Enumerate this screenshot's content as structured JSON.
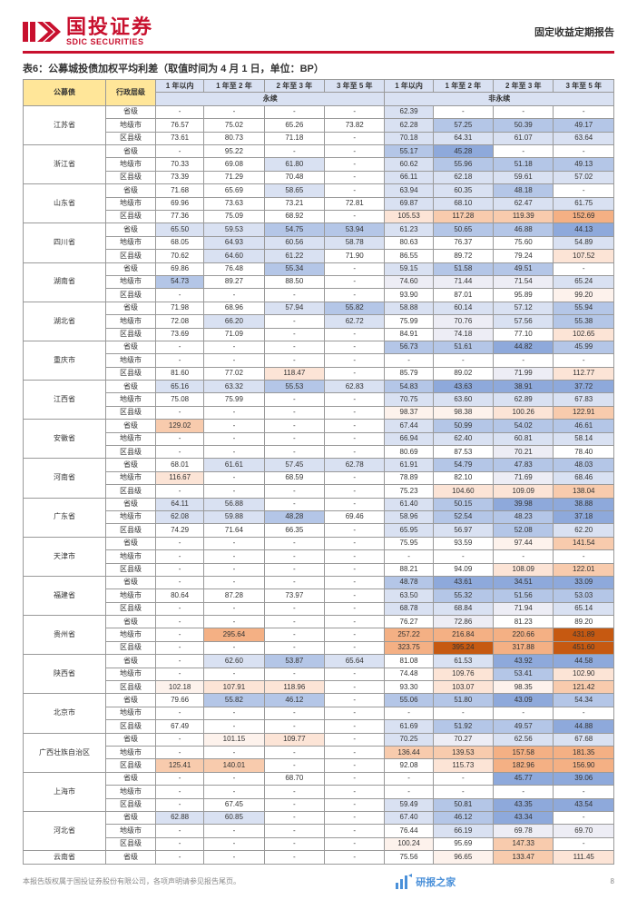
{
  "header": {
    "logo_cn": "国投证券",
    "logo_en": "SDIC SECURITIES",
    "right": "固定收益定期报告"
  },
  "table_title": "表6：公募城投债加权平均利差（取值时间为 4 月 1 日，单位：BP）",
  "columns": {
    "col0": "公募债",
    "col1": "行政层级",
    "group1": "永续",
    "group2": "非永续",
    "c1": "1 年以内",
    "c2": "1 年至 2 年",
    "c3": "2 年至 3 年",
    "c4": "3 年至 5 年"
  },
  "footer": {
    "left": "本报告版权属于国投证券股份有限公司，各项声明请参见报告尾页。",
    "page": "8",
    "watermark": "研报之家"
  },
  "colors": {
    "b5": "#305496",
    "b4": "#8ea9db",
    "b3": "#b4c6e7",
    "b2": "#d9e1f2",
    "b1": "#ededf5",
    "r5": "#c65911",
    "r4": "#f4b084",
    "r3": "#f8cbad",
    "r2": "#fce4d6",
    "r1": "#fdf2ec",
    "w": "#ffffff"
  },
  "rows": [
    {
      "prov": "江苏省",
      "lvl": "省级",
      "v": [
        "-",
        "-",
        "-",
        "-",
        "62.39",
        "-",
        "-",
        "-"
      ],
      "bg": [
        "w",
        "w",
        "w",
        "w",
        "b2",
        "w",
        "w",
        "w"
      ]
    },
    {
      "lvl": "地级市",
      "v": [
        "76.57",
        "75.02",
        "65.26",
        "73.82",
        "62.28",
        "57.25",
        "50.39",
        "49.17"
      ],
      "bg": [
        "w",
        "w",
        "w",
        "w",
        "b2",
        "b3",
        "b3",
        "b3"
      ]
    },
    {
      "lvl": "区县级",
      "v": [
        "73.61",
        "80.73",
        "71.18",
        "-",
        "70.18",
        "64.31",
        "61.07",
        "63.64"
      ],
      "bg": [
        "w",
        "w",
        "w",
        "w",
        "b2",
        "b2",
        "b2",
        "b2"
      ]
    },
    {
      "prov": "浙江省",
      "lvl": "省级",
      "v": [
        "-",
        "95.22",
        "-",
        "-",
        "55.17",
        "45.28",
        "-",
        "-"
      ],
      "bg": [
        "w",
        "w",
        "w",
        "w",
        "b3",
        "b4",
        "w",
        "w"
      ]
    },
    {
      "lvl": "地级市",
      "v": [
        "70.33",
        "69.08",
        "61.80",
        "-",
        "60.62",
        "55.96",
        "51.18",
        "49.13"
      ],
      "bg": [
        "w",
        "w",
        "b2",
        "w",
        "b2",
        "b3",
        "b3",
        "b3"
      ]
    },
    {
      "lvl": "区县级",
      "v": [
        "73.39",
        "71.29",
        "70.48",
        "-",
        "66.11",
        "62.18",
        "59.61",
        "57.02"
      ],
      "bg": [
        "w",
        "w",
        "w",
        "w",
        "b2",
        "b2",
        "b2",
        "b2"
      ]
    },
    {
      "prov": "山东省",
      "lvl": "省级",
      "v": [
        "71.68",
        "65.69",
        "58.65",
        "-",
        "63.94",
        "60.35",
        "48.18",
        "-"
      ],
      "bg": [
        "w",
        "w",
        "b2",
        "w",
        "b2",
        "b2",
        "b3",
        "w"
      ]
    },
    {
      "lvl": "地级市",
      "v": [
        "69.96",
        "73.63",
        "73.21",
        "72.81",
        "69.87",
        "68.10",
        "62.47",
        "61.75"
      ],
      "bg": [
        "w",
        "w",
        "w",
        "w",
        "b2",
        "b2",
        "b2",
        "b2"
      ]
    },
    {
      "lvl": "区县级",
      "v": [
        "77.36",
        "75.09",
        "68.92",
        "-",
        "105.53",
        "117.28",
        "119.39",
        "152.69"
      ],
      "bg": [
        "w",
        "w",
        "w",
        "w",
        "r2",
        "r3",
        "r3",
        "r4"
      ]
    },
    {
      "prov": "四川省",
      "lvl": "省级",
      "v": [
        "65.50",
        "59.53",
        "54.75",
        "53.94",
        "61.23",
        "50.65",
        "46.88",
        "44.13"
      ],
      "bg": [
        "b2",
        "b2",
        "b3",
        "b3",
        "b2",
        "b3",
        "b3",
        "b4"
      ]
    },
    {
      "lvl": "地级市",
      "v": [
        "68.05",
        "64.93",
        "60.56",
        "58.78",
        "80.63",
        "76.37",
        "75.60",
        "54.89"
      ],
      "bg": [
        "w",
        "b2",
        "b2",
        "b2",
        "w",
        "w",
        "w",
        "b2"
      ]
    },
    {
      "lvl": "区县级",
      "v": [
        "70.62",
        "64.60",
        "61.22",
        "71.90",
        "86.55",
        "89.72",
        "79.24",
        "107.52"
      ],
      "bg": [
        "w",
        "b2",
        "b2",
        "w",
        "w",
        "w",
        "w",
        "r2"
      ]
    },
    {
      "prov": "湖南省",
      "lvl": "省级",
      "v": [
        "69.86",
        "76.48",
        "55.34",
        "-",
        "59.15",
        "51.58",
        "49.51",
        "-"
      ],
      "bg": [
        "w",
        "w",
        "b3",
        "w",
        "b2",
        "b3",
        "b3",
        "w"
      ]
    },
    {
      "lvl": "地级市",
      "v": [
        "54.73",
        "89.27",
        "88.50",
        "-",
        "74.60",
        "71.44",
        "71.54",
        "65.24"
      ],
      "bg": [
        "b3",
        "w",
        "w",
        "w",
        "b1",
        "b1",
        "b1",
        "b2"
      ]
    },
    {
      "lvl": "区县级",
      "v": [
        "-",
        "-",
        "-",
        "-",
        "93.90",
        "87.01",
        "95.89",
        "99.20"
      ],
      "bg": [
        "w",
        "w",
        "w",
        "w",
        "w",
        "w",
        "w",
        "r1"
      ]
    },
    {
      "prov": "湖北省",
      "lvl": "省级",
      "v": [
        "71.98",
        "68.96",
        "57.94",
        "55.82",
        "58.88",
        "60.14",
        "57.12",
        "55.94"
      ],
      "bg": [
        "w",
        "w",
        "b2",
        "b3",
        "b2",
        "b2",
        "b2",
        "b3"
      ]
    },
    {
      "lvl": "地级市",
      "v": [
        "72.08",
        "66.20",
        "-",
        "62.72",
        "75.99",
        "70.76",
        "57.56",
        "55.38"
      ],
      "bg": [
        "w",
        "b2",
        "w",
        "b2",
        "w",
        "b1",
        "b2",
        "b3"
      ]
    },
    {
      "lvl": "区县级",
      "v": [
        "73.69",
        "71.09",
        "-",
        "-",
        "84.91",
        "74.18",
        "77.10",
        "102.65"
      ],
      "bg": [
        "w",
        "w",
        "w",
        "w",
        "w",
        "b1",
        "w",
        "r2"
      ]
    },
    {
      "prov": "重庆市",
      "lvl": "省级",
      "v": [
        "-",
        "-",
        "-",
        "-",
        "56.73",
        "51.61",
        "44.82",
        "45.99"
      ],
      "bg": [
        "w",
        "w",
        "w",
        "w",
        "b3",
        "b3",
        "b4",
        "b3"
      ]
    },
    {
      "lvl": "地级市",
      "v": [
        "-",
        "-",
        "-",
        "-",
        "-",
        "-",
        "-",
        "-"
      ],
      "bg": [
        "w",
        "w",
        "w",
        "w",
        "w",
        "w",
        "w",
        "w"
      ]
    },
    {
      "lvl": "区县级",
      "v": [
        "81.60",
        "77.02",
        "118.47",
        "-",
        "85.79",
        "89.02",
        "71.99",
        "112.77"
      ],
      "bg": [
        "w",
        "w",
        "r2",
        "w",
        "w",
        "w",
        "b1",
        "r2"
      ]
    },
    {
      "prov": "江西省",
      "lvl": "省级",
      "v": [
        "65.16",
        "63.32",
        "55.53",
        "62.83",
        "54.83",
        "43.63",
        "38.91",
        "37.72"
      ],
      "bg": [
        "b2",
        "b2",
        "b3",
        "b2",
        "b3",
        "b4",
        "b4",
        "b4"
      ]
    },
    {
      "lvl": "地级市",
      "v": [
        "75.08",
        "75.99",
        "-",
        "-",
        "70.75",
        "63.60",
        "62.89",
        "67.83"
      ],
      "bg": [
        "w",
        "w",
        "w",
        "w",
        "b2",
        "b2",
        "b2",
        "b2"
      ]
    },
    {
      "lvl": "区县级",
      "v": [
        "-",
        "-",
        "-",
        "-",
        "98.37",
        "98.38",
        "100.26",
        "122.91"
      ],
      "bg": [
        "w",
        "w",
        "w",
        "w",
        "r1",
        "r1",
        "r2",
        "r3"
      ]
    },
    {
      "prov": "安徽省",
      "lvl": "省级",
      "v": [
        "129.02",
        "-",
        "-",
        "-",
        "67.44",
        "50.99",
        "54.02",
        "46.61"
      ],
      "bg": [
        "r3",
        "w",
        "w",
        "w",
        "b2",
        "b3",
        "b3",
        "b3"
      ]
    },
    {
      "lvl": "地级市",
      "v": [
        "-",
        "-",
        "-",
        "-",
        "66.94",
        "62.40",
        "60.81",
        "58.14"
      ],
      "bg": [
        "w",
        "w",
        "w",
        "w",
        "b2",
        "b2",
        "b2",
        "b2"
      ]
    },
    {
      "lvl": "区县级",
      "v": [
        "-",
        "-",
        "-",
        "-",
        "80.69",
        "87.53",
        "70.21",
        "78.40"
      ],
      "bg": [
        "w",
        "w",
        "w",
        "w",
        "w",
        "w",
        "b1",
        "w"
      ]
    },
    {
      "prov": "河南省",
      "lvl": "省级",
      "v": [
        "68.01",
        "61.61",
        "57.45",
        "62.78",
        "61.91",
        "54.79",
        "47.83",
        "48.03"
      ],
      "bg": [
        "w",
        "b2",
        "b2",
        "b2",
        "b2",
        "b3",
        "b3",
        "b3"
      ]
    },
    {
      "lvl": "地级市",
      "v": [
        "116.67",
        "-",
        "68.59",
        "-",
        "78.89",
        "82.10",
        "71.69",
        "68.46"
      ],
      "bg": [
        "r2",
        "w",
        "w",
        "w",
        "w",
        "w",
        "b1",
        "b2"
      ]
    },
    {
      "lvl": "区县级",
      "v": [
        "-",
        "-",
        "-",
        "-",
        "75.23",
        "104.60",
        "109.09",
        "138.04"
      ],
      "bg": [
        "w",
        "w",
        "w",
        "w",
        "w",
        "r2",
        "r2",
        "r3"
      ]
    },
    {
      "prov": "广东省",
      "lvl": "省级",
      "v": [
        "64.11",
        "56.88",
        "-",
        "-",
        "61.40",
        "50.15",
        "39.98",
        "38.88"
      ],
      "bg": [
        "b2",
        "b2",
        "w",
        "w",
        "b2",
        "b3",
        "b4",
        "b4"
      ]
    },
    {
      "lvl": "地级市",
      "v": [
        "62.08",
        "59.88",
        "48.28",
        "69.46",
        "58.96",
        "52.54",
        "48.23",
        "37.18"
      ],
      "bg": [
        "b2",
        "b2",
        "b3",
        "w",
        "b2",
        "b3",
        "b3",
        "b4"
      ]
    },
    {
      "lvl": "区县级",
      "v": [
        "74.29",
        "71.64",
        "66.35",
        "-",
        "65.95",
        "56.97",
        "52.08",
        "62.20"
      ],
      "bg": [
        "w",
        "w",
        "w",
        "w",
        "b2",
        "b2",
        "b3",
        "b2"
      ]
    },
    {
      "prov": "天津市",
      "lvl": "省级",
      "v": [
        "-",
        "-",
        "-",
        "-",
        "75.95",
        "93.59",
        "97.44",
        "141.54"
      ],
      "bg": [
        "w",
        "w",
        "w",
        "w",
        "w",
        "w",
        "r1",
        "r3"
      ]
    },
    {
      "lvl": "地级市",
      "v": [
        "-",
        "-",
        "-",
        "-",
        "-",
        "-",
        "-",
        "-"
      ],
      "bg": [
        "w",
        "w",
        "w",
        "w",
        "w",
        "w",
        "w",
        "w"
      ]
    },
    {
      "lvl": "区县级",
      "v": [
        "-",
        "-",
        "-",
        "-",
        "88.21",
        "94.09",
        "108.09",
        "122.01"
      ],
      "bg": [
        "w",
        "w",
        "w",
        "w",
        "w",
        "w",
        "r2",
        "r3"
      ]
    },
    {
      "prov": "福建省",
      "lvl": "省级",
      "v": [
        "-",
        "-",
        "-",
        "-",
        "48.78",
        "43.61",
        "34.51",
        "33.09"
      ],
      "bg": [
        "w",
        "w",
        "w",
        "w",
        "b3",
        "b4",
        "b4",
        "b4"
      ]
    },
    {
      "lvl": "地级市",
      "v": [
        "80.64",
        "87.28",
        "73.97",
        "-",
        "63.50",
        "55.32",
        "51.56",
        "53.03"
      ],
      "bg": [
        "w",
        "w",
        "w",
        "w",
        "b2",
        "b3",
        "b3",
        "b3"
      ]
    },
    {
      "lvl": "区县级",
      "v": [
        "-",
        "-",
        "-",
        "-",
        "68.78",
        "68.84",
        "71.94",
        "65.14"
      ],
      "bg": [
        "w",
        "w",
        "w",
        "w",
        "b2",
        "b2",
        "b1",
        "b2"
      ]
    },
    {
      "prov": "贵州省",
      "lvl": "省级",
      "v": [
        "-",
        "-",
        "-",
        "-",
        "76.27",
        "72.86",
        "81.23",
        "89.20"
      ],
      "bg": [
        "w",
        "w",
        "w",
        "w",
        "w",
        "b1",
        "w",
        "w"
      ]
    },
    {
      "lvl": "地级市",
      "v": [
        "-",
        "295.64",
        "-",
        "-",
        "257.22",
        "216.84",
        "220.66",
        "431.89"
      ],
      "bg": [
        "w",
        "r4",
        "w",
        "w",
        "r4",
        "r4",
        "r4",
        "r5"
      ]
    },
    {
      "lvl": "区县级",
      "v": [
        "-",
        "-",
        "-",
        "-",
        "323.75",
        "395.24",
        "317.88",
        "451.60"
      ],
      "bg": [
        "w",
        "w",
        "w",
        "w",
        "r4",
        "r5",
        "r4",
        "r5"
      ]
    },
    {
      "prov": "陕西省",
      "lvl": "省级",
      "v": [
        "-",
        "62.60",
        "53.87",
        "65.64",
        "81.08",
        "61.53",
        "43.92",
        "44.58"
      ],
      "bg": [
        "w",
        "b2",
        "b3",
        "b2",
        "w",
        "b2",
        "b4",
        "b4"
      ]
    },
    {
      "lvl": "地级市",
      "v": [
        "-",
        "-",
        "-",
        "-",
        "74.48",
        "109.76",
        "53.41",
        "102.90"
      ],
      "bg": [
        "w",
        "w",
        "w",
        "w",
        "w",
        "r2",
        "b3",
        "r2"
      ]
    },
    {
      "lvl": "区县级",
      "v": [
        "102.18",
        "107.91",
        "118.96",
        "-",
        "93.30",
        "103.07",
        "98.35",
        "121.42"
      ],
      "bg": [
        "r1",
        "r2",
        "r2",
        "w",
        "w",
        "r2",
        "r1",
        "r3"
      ]
    },
    {
      "prov": "北京市",
      "lvl": "省级",
      "v": [
        "79.66",
        "55.82",
        "46.12",
        "-",
        "55.06",
        "51.80",
        "43.09",
        "54.34"
      ],
      "bg": [
        "w",
        "b3",
        "b3",
        "w",
        "b3",
        "b3",
        "b4",
        "b3"
      ]
    },
    {
      "lvl": "地级市",
      "v": [
        "-",
        "-",
        "-",
        "-",
        "-",
        "-",
        "-",
        "-"
      ],
      "bg": [
        "w",
        "w",
        "w",
        "w",
        "w",
        "w",
        "w",
        "w"
      ]
    },
    {
      "lvl": "区县级",
      "v": [
        "67.49",
        "-",
        "-",
        "-",
        "61.69",
        "51.92",
        "49.57",
        "44.88"
      ],
      "bg": [
        "w",
        "w",
        "w",
        "w",
        "b2",
        "b3",
        "b3",
        "b4"
      ]
    },
    {
      "prov": "广西壮族自治区",
      "lvl": "省级",
      "v": [
        "-",
        "101.15",
        "109.77",
        "-",
        "70.25",
        "70.27",
        "62.56",
        "67.68"
      ],
      "bg": [
        "w",
        "r1",
        "r2",
        "w",
        "b2",
        "b1",
        "b2",
        "b2"
      ]
    },
    {
      "lvl": "地级市",
      "v": [
        "-",
        "-",
        "-",
        "-",
        "136.44",
        "139.53",
        "157.58",
        "181.35"
      ],
      "bg": [
        "w",
        "w",
        "w",
        "w",
        "r3",
        "r3",
        "r4",
        "r4"
      ]
    },
    {
      "lvl": "区县级",
      "v": [
        "125.41",
        "140.01",
        "-",
        "-",
        "92.08",
        "115.73",
        "182.96",
        "156.90"
      ],
      "bg": [
        "r3",
        "r3",
        "w",
        "w",
        "w",
        "r2",
        "r4",
        "r4"
      ]
    },
    {
      "prov": "上海市",
      "lvl": "省级",
      "v": [
        "-",
        "-",
        "68.70",
        "-",
        "-",
        "-",
        "45.77",
        "39.06"
      ],
      "bg": [
        "w",
        "w",
        "w",
        "w",
        "w",
        "w",
        "b4",
        "b4"
      ]
    },
    {
      "lvl": "地级市",
      "v": [
        "-",
        "-",
        "-",
        "-",
        "-",
        "-",
        "-",
        "-"
      ],
      "bg": [
        "w",
        "w",
        "w",
        "w",
        "w",
        "w",
        "w",
        "w"
      ]
    },
    {
      "lvl": "区县级",
      "v": [
        "-",
        "67.45",
        "-",
        "-",
        "59.49",
        "50.81",
        "43.35",
        "43.54"
      ],
      "bg": [
        "w",
        "w",
        "w",
        "w",
        "b2",
        "b3",
        "b4",
        "b4"
      ]
    },
    {
      "prov": "河北省",
      "lvl": "省级",
      "v": [
        "62.88",
        "60.85",
        "-",
        "-",
        "67.40",
        "46.12",
        "43.34",
        "-"
      ],
      "bg": [
        "b2",
        "b2",
        "w",
        "w",
        "b2",
        "b3",
        "b4",
        "w"
      ]
    },
    {
      "lvl": "地级市",
      "v": [
        "-",
        "-",
        "-",
        "-",
        "76.44",
        "66.19",
        "69.78",
        "69.70"
      ],
      "bg": [
        "w",
        "w",
        "w",
        "w",
        "w",
        "b2",
        "b1",
        "b1"
      ]
    },
    {
      "lvl": "区县级",
      "v": [
        "-",
        "-",
        "-",
        "-",
        "100.24",
        "95.69",
        "147.33",
        "-"
      ],
      "bg": [
        "w",
        "w",
        "w",
        "w",
        "r1",
        "w",
        "r3",
        "w"
      ]
    },
    {
      "prov": "云南省",
      "lvl": "省级",
      "v": [
        "-",
        "-",
        "-",
        "-",
        "75.56",
        "96.65",
        "133.47",
        "111.45"
      ],
      "bg": [
        "w",
        "w",
        "w",
        "w",
        "w",
        "r1",
        "r3",
        "r2"
      ]
    }
  ]
}
